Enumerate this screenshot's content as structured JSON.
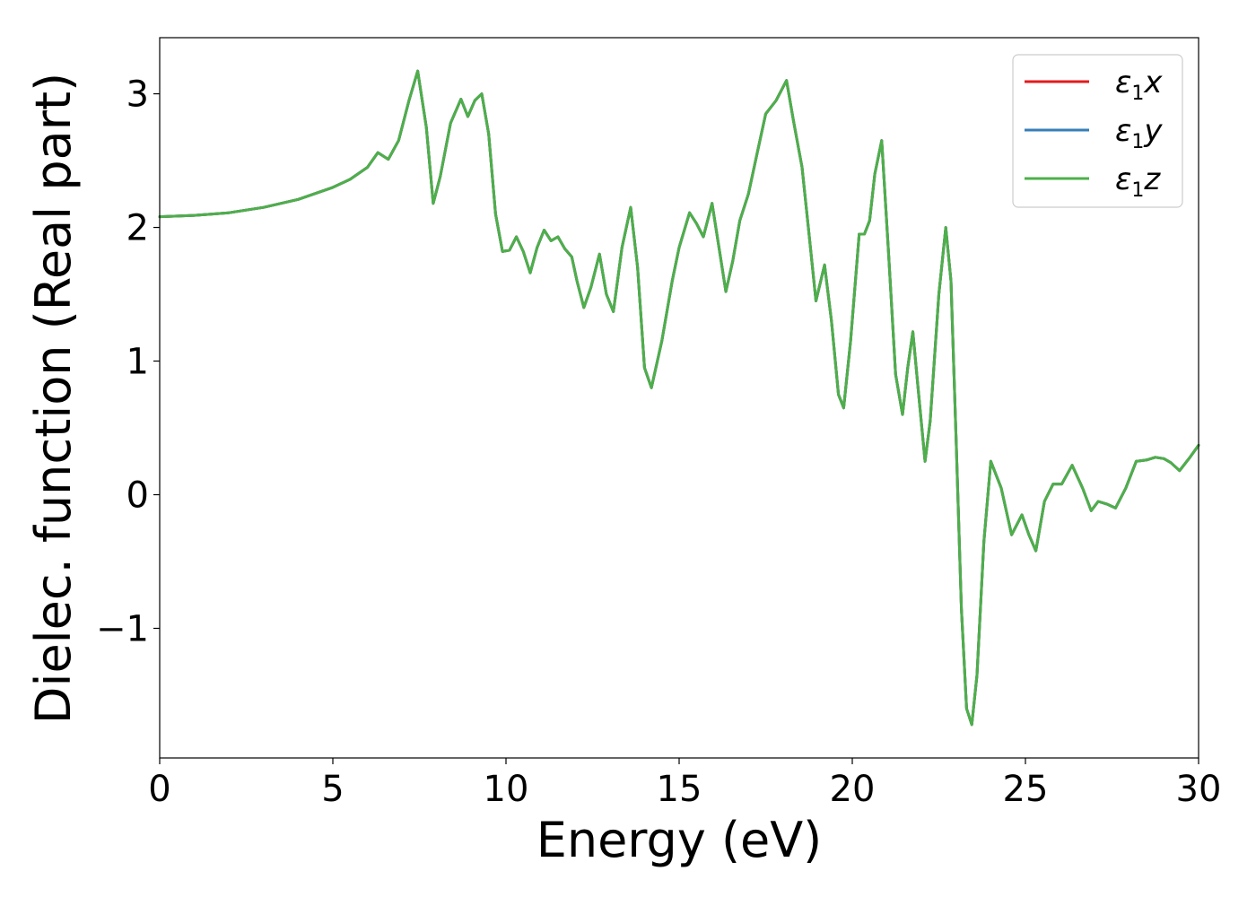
{
  "chart_data": {
    "type": "line",
    "xlabel": "Energy (eV)",
    "ylabel": "Dielec. function (Real part)",
    "xlim": [
      0,
      30
    ],
    "ylim": [
      -1.97,
      3.42
    ],
    "xticks": [
      0,
      5,
      10,
      15,
      20,
      25,
      30
    ],
    "xtick_labels": [
      "0",
      "5",
      "10",
      "15",
      "20",
      "25",
      "30"
    ],
    "yticks": [
      -1,
      0,
      1,
      2,
      3
    ],
    "ytick_labels": [
      "−1",
      "0",
      "1",
      "2",
      "3"
    ],
    "grid": false,
    "legend_position": "top-right",
    "x": [
      0,
      1,
      2,
      3,
      4,
      5,
      5.5,
      6.0,
      6.3,
      6.6,
      6.9,
      7.2,
      7.45,
      7.7,
      7.9,
      8.1,
      8.4,
      8.7,
      8.9,
      9.1,
      9.3,
      9.5,
      9.7,
      9.9,
      10.1,
      10.3,
      10.5,
      10.7,
      10.9,
      11.1,
      11.3,
      11.5,
      11.7,
      11.9,
      12.05,
      12.25,
      12.45,
      12.7,
      12.9,
      13.1,
      13.35,
      13.6,
      13.8,
      14.0,
      14.2,
      14.5,
      14.8,
      15.0,
      15.3,
      15.5,
      15.7,
      15.95,
      16.15,
      16.35,
      16.55,
      16.75,
      17.0,
      17.25,
      17.5,
      17.8,
      18.1,
      18.3,
      18.55,
      18.75,
      18.95,
      19.2,
      19.4,
      19.6,
      19.75,
      19.95,
      20.2,
      20.35,
      20.5,
      20.65,
      20.85,
      21.05,
      21.25,
      21.45,
      21.6,
      21.75,
      21.9,
      22.1,
      22.25,
      22.5,
      22.7,
      22.85,
      23.0,
      23.15,
      23.3,
      23.45,
      23.6,
      23.8,
      24.0,
      24.3,
      24.6,
      24.9,
      25.1,
      25.3,
      25.55,
      25.8,
      26.05,
      26.35,
      26.65,
      26.9,
      27.1,
      27.35,
      27.6,
      27.9,
      28.2,
      28.5,
      28.75,
      29.0,
      29.2,
      29.45,
      29.75,
      30.0
    ],
    "series": [
      {
        "name": "ε1x",
        "color": "#e41a1c",
        "y": [
          2.08,
          2.09,
          2.11,
          2.15,
          2.21,
          2.3,
          2.36,
          2.45,
          2.56,
          2.51,
          2.65,
          2.95,
          3.17,
          2.75,
          2.18,
          2.38,
          2.78,
          2.96,
          2.83,
          2.95,
          3.0,
          2.7,
          2.1,
          1.82,
          1.83,
          1.93,
          1.82,
          1.66,
          1.85,
          1.98,
          1.9,
          1.93,
          1.84,
          1.78,
          1.6,
          1.4,
          1.55,
          1.8,
          1.5,
          1.37,
          1.85,
          2.15,
          1.7,
          0.95,
          0.8,
          1.15,
          1.6,
          1.85,
          2.11,
          2.03,
          1.93,
          2.18,
          1.85,
          1.52,
          1.75,
          2.05,
          2.25,
          2.55,
          2.85,
          2.95,
          3.1,
          2.8,
          2.45,
          1.95,
          1.45,
          1.72,
          1.3,
          0.75,
          0.65,
          1.15,
          1.95,
          1.95,
          2.05,
          2.4,
          2.65,
          1.8,
          0.9,
          0.6,
          0.95,
          1.22,
          0.8,
          0.25,
          0.55,
          1.5,
          2.0,
          1.6,
          0.4,
          -0.85,
          -1.6,
          -1.72,
          -1.35,
          -0.35,
          0.25,
          0.05,
          -0.3,
          -0.15,
          -0.3,
          -0.42,
          -0.05,
          0.08,
          0.08,
          0.22,
          0.05,
          -0.12,
          -0.05,
          -0.07,
          -0.1,
          0.05,
          0.25,
          0.26,
          0.28,
          0.27,
          0.24,
          0.18,
          0.28,
          0.37
        ]
      },
      {
        "name": "ε1y",
        "color": "#377eb8",
        "y": [
          2.08,
          2.09,
          2.11,
          2.15,
          2.21,
          2.3,
          2.36,
          2.45,
          2.56,
          2.51,
          2.65,
          2.95,
          3.17,
          2.75,
          2.18,
          2.38,
          2.78,
          2.96,
          2.83,
          2.95,
          3.0,
          2.7,
          2.1,
          1.82,
          1.83,
          1.93,
          1.82,
          1.66,
          1.85,
          1.98,
          1.9,
          1.93,
          1.84,
          1.78,
          1.6,
          1.4,
          1.55,
          1.8,
          1.5,
          1.37,
          1.85,
          2.15,
          1.7,
          0.95,
          0.8,
          1.15,
          1.6,
          1.85,
          2.11,
          2.03,
          1.93,
          2.18,
          1.85,
          1.52,
          1.75,
          2.05,
          2.25,
          2.55,
          2.85,
          2.95,
          3.1,
          2.8,
          2.45,
          1.95,
          1.45,
          1.72,
          1.3,
          0.75,
          0.65,
          1.15,
          1.95,
          1.95,
          2.05,
          2.4,
          2.65,
          1.8,
          0.9,
          0.6,
          0.95,
          1.22,
          0.8,
          0.25,
          0.55,
          1.5,
          2.0,
          1.6,
          0.4,
          -0.85,
          -1.6,
          -1.72,
          -1.35,
          -0.35,
          0.25,
          0.05,
          -0.3,
          -0.15,
          -0.3,
          -0.42,
          -0.05,
          0.08,
          0.08,
          0.22,
          0.05,
          -0.12,
          -0.05,
          -0.07,
          -0.1,
          0.05,
          0.25,
          0.26,
          0.28,
          0.27,
          0.24,
          0.18,
          0.28,
          0.37
        ]
      },
      {
        "name": "ε1z",
        "color": "#4daf4a",
        "y": [
          2.08,
          2.09,
          2.11,
          2.15,
          2.21,
          2.3,
          2.36,
          2.45,
          2.56,
          2.51,
          2.65,
          2.95,
          3.17,
          2.75,
          2.18,
          2.38,
          2.78,
          2.96,
          2.83,
          2.95,
          3.0,
          2.7,
          2.1,
          1.82,
          1.83,
          1.93,
          1.82,
          1.66,
          1.85,
          1.98,
          1.9,
          1.93,
          1.84,
          1.78,
          1.6,
          1.4,
          1.55,
          1.8,
          1.5,
          1.37,
          1.85,
          2.15,
          1.7,
          0.95,
          0.8,
          1.15,
          1.6,
          1.85,
          2.11,
          2.03,
          1.93,
          2.18,
          1.85,
          1.52,
          1.75,
          2.05,
          2.25,
          2.55,
          2.85,
          2.95,
          3.1,
          2.8,
          2.45,
          1.95,
          1.45,
          1.72,
          1.3,
          0.75,
          0.65,
          1.15,
          1.95,
          1.95,
          2.05,
          2.4,
          2.65,
          1.8,
          0.9,
          0.6,
          0.95,
          1.22,
          0.8,
          0.25,
          0.55,
          1.5,
          2.0,
          1.6,
          0.4,
          -0.85,
          -1.6,
          -1.72,
          -1.35,
          -0.35,
          0.25,
          0.05,
          -0.3,
          -0.15,
          -0.3,
          -0.42,
          -0.05,
          0.08,
          0.08,
          0.22,
          0.05,
          -0.12,
          -0.05,
          -0.07,
          -0.1,
          0.05,
          0.25,
          0.26,
          0.28,
          0.27,
          0.24,
          0.18,
          0.28,
          0.37
        ]
      }
    ],
    "legend": [
      {
        "symbol": "ε",
        "sub": "1",
        "axis": "x"
      },
      {
        "symbol": "ε",
        "sub": "1",
        "axis": "y"
      },
      {
        "symbol": "ε",
        "sub": "1",
        "axis": "z"
      }
    ]
  }
}
